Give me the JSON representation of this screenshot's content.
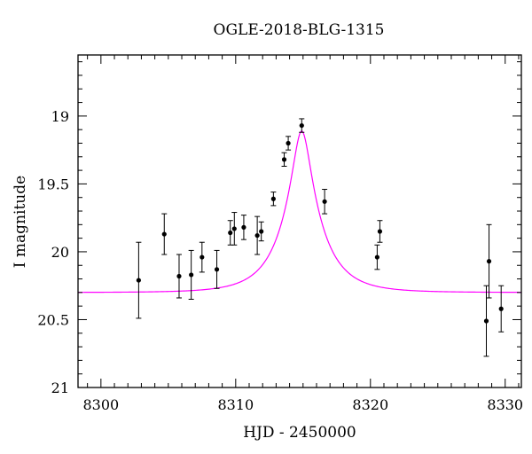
{
  "chart_data": {
    "type": "scatter",
    "title": "OGLE-2018-BLG-1315",
    "xlabel": "HJD - 2450000",
    "ylabel": "I magnitude",
    "xlim": [
      8298.3,
      8331.2
    ],
    "ylim": [
      21,
      18.55
    ],
    "y_inverted": true,
    "x_ticks": [
      8300,
      8310,
      8320,
      8330
    ],
    "y_ticks": [
      19,
      19.5,
      20,
      20.5,
      21
    ],
    "x_tick_labels": [
      "8300",
      "8310",
      "8320",
      "8330"
    ],
    "y_tick_labels": [
      "19",
      "19.5",
      "20",
      "20.5",
      "21"
    ],
    "grid": false,
    "colors": {
      "points": "#000000",
      "model": "#ff00ff",
      "axes": "#000000"
    },
    "series": [
      {
        "type": "points_with_errorbars",
        "points": [
          {
            "x": 8302.8,
            "y": 20.21,
            "err": 0.28
          },
          {
            "x": 8304.7,
            "y": 19.87,
            "err": 0.15
          },
          {
            "x": 8305.8,
            "y": 20.18,
            "err": 0.16
          },
          {
            "x": 8306.7,
            "y": 20.17,
            "err": 0.18
          },
          {
            "x": 8307.5,
            "y": 20.04,
            "err": 0.11
          },
          {
            "x": 8308.6,
            "y": 20.13,
            "err": 0.14
          },
          {
            "x": 8309.6,
            "y": 19.86,
            "err": 0.09
          },
          {
            "x": 8309.9,
            "y": 19.83,
            "err": 0.12
          },
          {
            "x": 8310.6,
            "y": 19.82,
            "err": 0.09
          },
          {
            "x": 8311.6,
            "y": 19.88,
            "err": 0.14
          },
          {
            "x": 8311.9,
            "y": 19.85,
            "err": 0.07
          },
          {
            "x": 8312.8,
            "y": 19.61,
            "err": 0.05
          },
          {
            "x": 8313.6,
            "y": 19.32,
            "err": 0.05
          },
          {
            "x": 8313.9,
            "y": 19.2,
            "err": 0.05
          },
          {
            "x": 8314.9,
            "y": 19.07,
            "err": 0.05
          },
          {
            "x": 8316.6,
            "y": 19.63,
            "err": 0.09
          },
          {
            "x": 8320.5,
            "y": 20.04,
            "err": 0.09
          },
          {
            "x": 8320.7,
            "y": 19.85,
            "err": 0.08
          },
          {
            "x": 8328.6,
            "y": 20.51,
            "err": 0.26
          },
          {
            "x": 8328.8,
            "y": 20.07,
            "err": 0.27
          },
          {
            "x": 8329.7,
            "y": 20.42,
            "err": 0.17
          }
        ]
      },
      {
        "type": "model_curve",
        "t0": 8314.9,
        "u0": 0.22,
        "tE": 2.8,
        "peak_mag": 19.11,
        "baseline_mag": 20.3
      }
    ]
  }
}
